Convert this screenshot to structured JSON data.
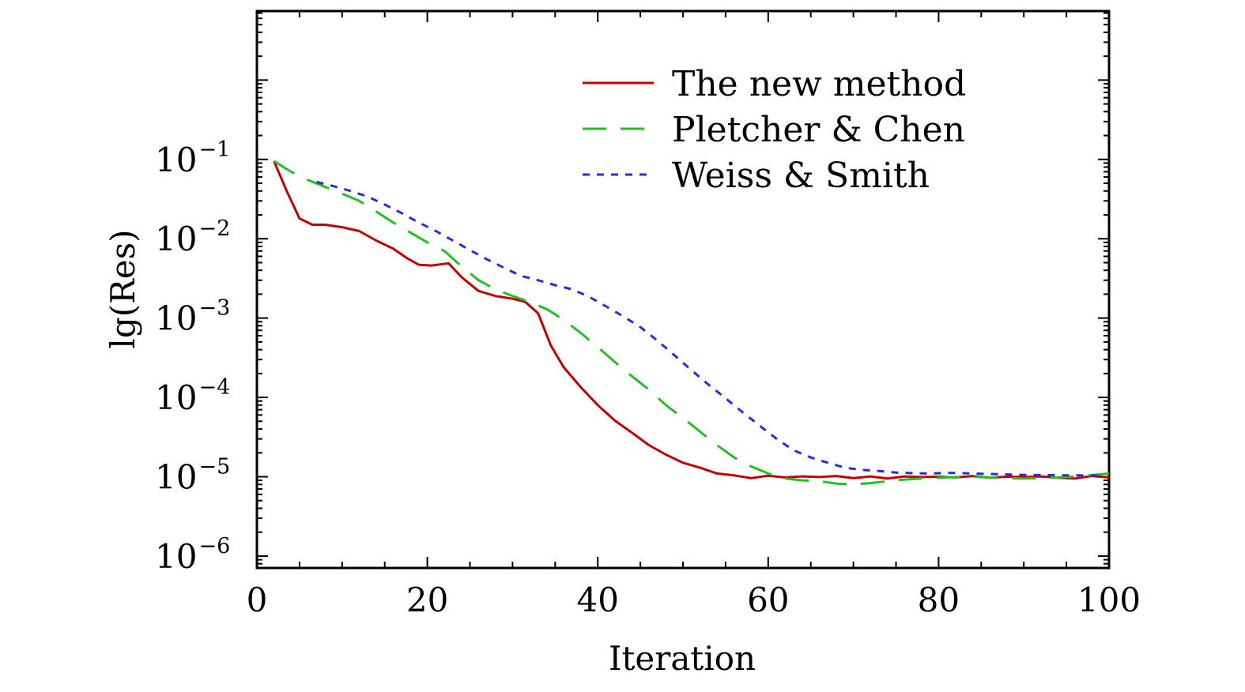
{
  "chart_data": {
    "type": "line",
    "xlabel": "Iteration",
    "ylabel": "lg(Res)",
    "xlim": [
      0,
      100
    ],
    "ylim_log10": [
      -6.15,
      0.87
    ],
    "y_scale": "log",
    "grid": false,
    "legend_position": "top-right",
    "x_ticks": [
      {
        "value": 0,
        "label": "0"
      },
      {
        "value": 20,
        "label": "20"
      },
      {
        "value": 40,
        "label": "40"
      },
      {
        "value": 60,
        "label": "60"
      },
      {
        "value": 80,
        "label": "80"
      },
      {
        "value": 100,
        "label": "100"
      }
    ],
    "y_ticks": [
      {
        "value": 0.1,
        "base": "10",
        "exp": "−1"
      },
      {
        "value": 0.01,
        "base": "10",
        "exp": "−2"
      },
      {
        "value": 0.001,
        "base": "10",
        "exp": "−3"
      },
      {
        "value": 0.0001,
        "base": "10",
        "exp": "−4"
      },
      {
        "value": 1e-05,
        "base": "10",
        "exp": "−5"
      },
      {
        "value": 1e-06,
        "base": "10",
        "exp": "−6"
      }
    ],
    "series": [
      {
        "name": "The new method",
        "color": "#c00000",
        "dash": "solid",
        "x": [
          2,
          3.5,
          5,
          6.5,
          8,
          10,
          12,
          14,
          16,
          17.5,
          19,
          20.5,
          22.5,
          24,
          26,
          28,
          30,
          31.5,
          33,
          34.5,
          36,
          38,
          40,
          42,
          44,
          46,
          48,
          50,
          52,
          54,
          56,
          58,
          60,
          62,
          64,
          66,
          68,
          70,
          72,
          74,
          76,
          78,
          80,
          82,
          84,
          86,
          88,
          90,
          92,
          94,
          96,
          98,
          100
        ],
        "y": [
          0.095,
          0.04,
          0.018,
          0.015,
          0.015,
          0.014,
          0.0125,
          0.0095,
          0.0075,
          0.0058,
          0.0047,
          0.0046,
          0.0049,
          0.0033,
          0.0022,
          0.0019,
          0.00175,
          0.0016,
          0.00115,
          0.00045,
          0.00024,
          0.000135,
          8e-05,
          5.1e-05,
          3.6e-05,
          2.5e-05,
          1.9e-05,
          1.5e-05,
          1.3e-05,
          1.1e-05,
          1.04e-05,
          9.6e-06,
          1.03e-05,
          9.8e-06,
          1.01e-05,
          9.9e-06,
          1.02e-05,
          9.6e-06,
          1.01e-05,
          9.5e-06,
          1.01e-05,
          9.9e-06,
          1e-05,
          9.8e-06,
          1.02e-05,
          9.7e-06,
          1e-05,
          9.9e-06,
          1.01e-05,
          9.7e-06,
          9.5e-06,
          1.02e-05,
          9.8e-06
        ]
      },
      {
        "name": "Pletcher & Chen",
        "color": "#22c022",
        "dash": "long",
        "x": [
          2,
          4,
          6,
          8,
          10,
          12,
          14,
          16,
          18,
          20,
          22,
          24,
          26,
          28,
          30,
          32,
          34,
          36,
          38,
          40,
          42,
          44,
          46,
          48,
          50,
          52,
          54,
          56,
          58,
          60,
          62,
          64,
          66,
          68,
          70,
          72,
          74,
          76,
          78,
          80,
          82,
          84,
          86,
          88,
          90,
          92,
          94,
          96,
          98,
          100
        ],
        "y": [
          0.095,
          0.07,
          0.055,
          0.045,
          0.037,
          0.03,
          0.022,
          0.016,
          0.012,
          0.009,
          0.007,
          0.0045,
          0.003,
          0.0023,
          0.0019,
          0.0016,
          0.0013,
          0.00095,
          0.00065,
          0.00043,
          0.00028,
          0.000185,
          0.000125,
          8e-05,
          5.5e-05,
          3.7e-05,
          2.5e-05,
          1.75e-05,
          1.35e-05,
          1.1e-05,
          9.5e-06,
          9e-06,
          8.8e-06,
          8.2e-06,
          8e-06,
          8.3e-06,
          8.8e-06,
          9.2e-06,
          9.5e-06,
          9.7e-06,
          9.9e-06,
          1e-05,
          9.8e-06,
          9.6e-06,
          9.5e-06,
          9.6e-06,
          9.8e-06,
          1e-05,
          1.05e-05,
          1.1e-05
        ]
      },
      {
        "name": "Weiss & Smith",
        "color": "#2b2bdd",
        "dash": "short",
        "x": [
          7,
          9,
          11,
          13,
          15,
          17,
          19,
          21,
          23,
          25,
          27,
          29,
          31,
          33,
          35,
          37,
          39,
          41,
          43,
          45,
          47,
          49,
          51,
          53,
          55,
          57,
          59,
          61,
          63,
          65,
          67,
          69,
          71,
          73,
          75,
          77,
          79,
          81,
          83,
          85,
          87,
          89,
          91,
          93,
          95,
          97,
          99
        ],
        "y": [
          0.052,
          0.046,
          0.04,
          0.034,
          0.027,
          0.021,
          0.016,
          0.0125,
          0.0095,
          0.0072,
          0.0055,
          0.0043,
          0.0034,
          0.003,
          0.0026,
          0.0023,
          0.00185,
          0.0014,
          0.00105,
          0.00077,
          0.00052,
          0.00034,
          0.00022,
          0.000145,
          9.75e-05,
          6.5e-05,
          4.4e-05,
          3e-05,
          2.15e-05,
          1.75e-05,
          1.5e-05,
          1.3e-05,
          1.22e-05,
          1.18e-05,
          1.13e-05,
          1.11e-05,
          1.1e-05,
          1.12e-05,
          1.11e-05,
          1.09e-05,
          1.08e-05,
          1.06e-05,
          1.05e-05,
          1.05e-05,
          1.04e-05,
          1.04e-05,
          1.03e-05
        ]
      }
    ]
  }
}
